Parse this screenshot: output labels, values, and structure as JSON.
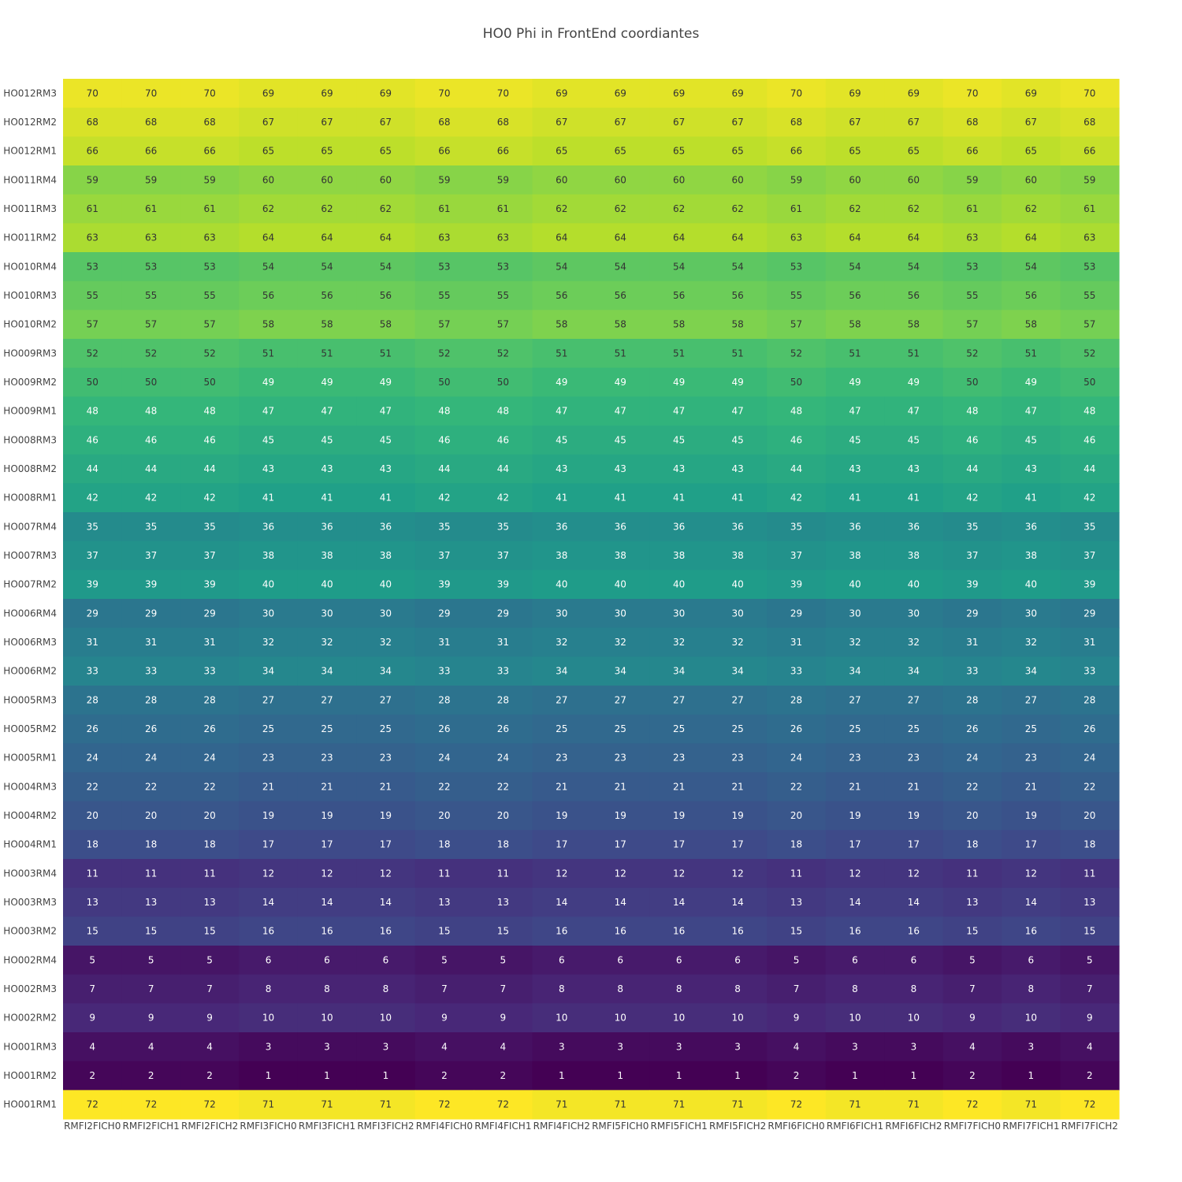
{
  "chart_data": {
    "type": "heatmap",
    "title": "HO0 Phi in FrontEnd coordiantes",
    "xlabel": "",
    "ylabel": "",
    "colorscale": "viridis",
    "zmin": 1,
    "zmax": 72,
    "x": [
      "RMFI2FICH0",
      "RMFI2FICH1",
      "RMFI2FICH2",
      "RMFI3FICH0",
      "RMFI3FICH1",
      "RMFI3FICH2",
      "RMFI4FICH0",
      "RMFI4FICH1",
      "RMFI4FICH2",
      "RMFI5FICH0",
      "RMFI5FICH1",
      "RMFI5FICH2",
      "RMFI6FICH0",
      "RMFI6FICH1",
      "RMFI6FICH2",
      "RMFI7FICH0",
      "RMFI7FICH1",
      "RMFI7FICH2"
    ],
    "y": [
      "HO012RM3",
      "HO012RM2",
      "HO012RM1",
      "HO011RM4",
      "HO011RM3",
      "HO011RM2",
      "HO010RM4",
      "HO010RM3",
      "HO010RM2",
      "HO009RM3",
      "HO009RM2",
      "HO009RM1",
      "HO008RM3",
      "HO008RM2",
      "HO008RM1",
      "HO007RM4",
      "HO007RM3",
      "HO007RM2",
      "HO006RM4",
      "HO006RM3",
      "HO006RM2",
      "HO005RM3",
      "HO005RM2",
      "HO005RM1",
      "HO004RM3",
      "HO004RM2",
      "HO004RM1",
      "HO003RM4",
      "HO003RM3",
      "HO003RM2",
      "HO002RM4",
      "HO002RM3",
      "HO002RM2",
      "HO001RM3",
      "HO001RM2",
      "HO001RM1"
    ],
    "z": [
      [
        70,
        70,
        70,
        69,
        69,
        69,
        70,
        70,
        69,
        69,
        69,
        69,
        70,
        69,
        69,
        70,
        69,
        70
      ],
      [
        68,
        68,
        68,
        67,
        67,
        67,
        68,
        68,
        67,
        67,
        67,
        67,
        68,
        67,
        67,
        68,
        67,
        68
      ],
      [
        66,
        66,
        66,
        65,
        65,
        65,
        66,
        66,
        65,
        65,
        65,
        65,
        66,
        65,
        65,
        66,
        65,
        66
      ],
      [
        59,
        59,
        59,
        60,
        60,
        60,
        59,
        59,
        60,
        60,
        60,
        60,
        59,
        60,
        60,
        59,
        60,
        59
      ],
      [
        61,
        61,
        61,
        62,
        62,
        62,
        61,
        61,
        62,
        62,
        62,
        62,
        61,
        62,
        62,
        61,
        62,
        61
      ],
      [
        63,
        63,
        63,
        64,
        64,
        64,
        63,
        63,
        64,
        64,
        64,
        64,
        63,
        64,
        64,
        63,
        64,
        63
      ],
      [
        53,
        53,
        53,
        54,
        54,
        54,
        53,
        53,
        54,
        54,
        54,
        54,
        53,
        54,
        54,
        53,
        54,
        53
      ],
      [
        55,
        55,
        55,
        56,
        56,
        56,
        55,
        55,
        56,
        56,
        56,
        56,
        55,
        56,
        56,
        55,
        56,
        55
      ],
      [
        57,
        57,
        57,
        58,
        58,
        58,
        57,
        57,
        58,
        58,
        58,
        58,
        57,
        58,
        58,
        57,
        58,
        57
      ],
      [
        52,
        52,
        52,
        51,
        51,
        51,
        52,
        52,
        51,
        51,
        51,
        51,
        52,
        51,
        51,
        52,
        51,
        52
      ],
      [
        50,
        50,
        50,
        49,
        49,
        49,
        50,
        50,
        49,
        49,
        49,
        49,
        50,
        49,
        49,
        50,
        49,
        50
      ],
      [
        48,
        48,
        48,
        47,
        47,
        47,
        48,
        48,
        47,
        47,
        47,
        47,
        48,
        47,
        47,
        48,
        47,
        48
      ],
      [
        46,
        46,
        46,
        45,
        45,
        45,
        46,
        46,
        45,
        45,
        45,
        45,
        46,
        45,
        45,
        46,
        45,
        46
      ],
      [
        44,
        44,
        44,
        43,
        43,
        43,
        44,
        44,
        43,
        43,
        43,
        43,
        44,
        43,
        43,
        44,
        43,
        44
      ],
      [
        42,
        42,
        42,
        41,
        41,
        41,
        42,
        42,
        41,
        41,
        41,
        41,
        42,
        41,
        41,
        42,
        41,
        42
      ],
      [
        35,
        35,
        35,
        36,
        36,
        36,
        35,
        35,
        36,
        36,
        36,
        36,
        35,
        36,
        36,
        35,
        36,
        35
      ],
      [
        37,
        37,
        37,
        38,
        38,
        38,
        37,
        37,
        38,
        38,
        38,
        38,
        37,
        38,
        38,
        37,
        38,
        37
      ],
      [
        39,
        39,
        39,
        40,
        40,
        40,
        39,
        39,
        40,
        40,
        40,
        40,
        39,
        40,
        40,
        39,
        40,
        39
      ],
      [
        29,
        29,
        29,
        30,
        30,
        30,
        29,
        29,
        30,
        30,
        30,
        30,
        29,
        30,
        30,
        29,
        30,
        29
      ],
      [
        31,
        31,
        31,
        32,
        32,
        32,
        31,
        31,
        32,
        32,
        32,
        32,
        31,
        32,
        32,
        31,
        32,
        31
      ],
      [
        33,
        33,
        33,
        34,
        34,
        34,
        33,
        33,
        34,
        34,
        34,
        34,
        33,
        34,
        34,
        33,
        34,
        33
      ],
      [
        28,
        28,
        28,
        27,
        27,
        27,
        28,
        28,
        27,
        27,
        27,
        27,
        28,
        27,
        27,
        28,
        27,
        28
      ],
      [
        26,
        26,
        26,
        25,
        25,
        25,
        26,
        26,
        25,
        25,
        25,
        25,
        26,
        25,
        25,
        26,
        25,
        26
      ],
      [
        24,
        24,
        24,
        23,
        23,
        23,
        24,
        24,
        23,
        23,
        23,
        23,
        24,
        23,
        23,
        24,
        23,
        24
      ],
      [
        22,
        22,
        22,
        21,
        21,
        21,
        22,
        22,
        21,
        21,
        21,
        21,
        22,
        21,
        21,
        22,
        21,
        22
      ],
      [
        20,
        20,
        20,
        19,
        19,
        19,
        20,
        20,
        19,
        19,
        19,
        19,
        20,
        19,
        19,
        20,
        19,
        20
      ],
      [
        18,
        18,
        18,
        17,
        17,
        17,
        18,
        18,
        17,
        17,
        17,
        17,
        18,
        17,
        17,
        18,
        17,
        18
      ],
      [
        11,
        11,
        11,
        12,
        12,
        12,
        11,
        11,
        12,
        12,
        12,
        12,
        11,
        12,
        12,
        11,
        12,
        11
      ],
      [
        13,
        13,
        13,
        14,
        14,
        14,
        13,
        13,
        14,
        14,
        14,
        14,
        13,
        14,
        14,
        13,
        14,
        13
      ],
      [
        15,
        15,
        15,
        16,
        16,
        16,
        15,
        15,
        16,
        16,
        16,
        16,
        15,
        16,
        16,
        15,
        16,
        15
      ],
      [
        5,
        5,
        5,
        6,
        6,
        6,
        5,
        5,
        6,
        6,
        6,
        6,
        5,
        6,
        6,
        5,
        6,
        5
      ],
      [
        7,
        7,
        7,
        8,
        8,
        8,
        7,
        7,
        8,
        8,
        8,
        8,
        7,
        8,
        8,
        7,
        8,
        7
      ],
      [
        9,
        9,
        9,
        10,
        10,
        10,
        9,
        9,
        10,
        10,
        10,
        10,
        9,
        10,
        10,
        9,
        10,
        9
      ],
      [
        4,
        4,
        4,
        3,
        3,
        3,
        4,
        4,
        3,
        3,
        3,
        3,
        4,
        3,
        3,
        4,
        3,
        4
      ],
      [
        2,
        2,
        2,
        1,
        1,
        1,
        2,
        2,
        1,
        1,
        1,
        1,
        2,
        1,
        1,
        2,
        1,
        2
      ],
      [
        72,
        72,
        72,
        71,
        71,
        71,
        72,
        72,
        71,
        71,
        71,
        71,
        72,
        71,
        71,
        72,
        71,
        72
      ]
    ],
    "grid": false,
    "legend": "none"
  }
}
